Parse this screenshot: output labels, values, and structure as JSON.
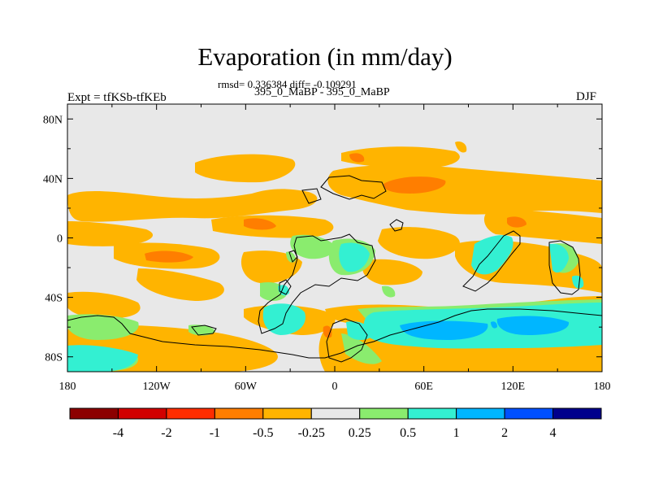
{
  "header": {
    "title": "Evaporation (in mm/day)",
    "stats": "rmsd= 0.336384 diff= -0.109291",
    "subtitle": "395_0_MaBP - 395_0_MaBP",
    "left_label": "Expt = tfKSb-tfKEb",
    "right_label": "DJF"
  },
  "map": {
    "x_ticks": [
      {
        "value": -180,
        "label": "180"
      },
      {
        "value": -120,
        "label": "120W"
      },
      {
        "value": -60,
        "label": "60W"
      },
      {
        "value": 0,
        "label": "0"
      },
      {
        "value": 60,
        "label": "60E"
      },
      {
        "value": 120,
        "label": "120E"
      },
      {
        "value": 180,
        "label": "180"
      }
    ],
    "y_ticks": [
      {
        "value": 80,
        "label": "80N"
      },
      {
        "value": 40,
        "label": "40N"
      },
      {
        "value": 0,
        "label": "0"
      },
      {
        "value": -40,
        "label": "40S"
      },
      {
        "value": -80,
        "label": "80S"
      }
    ]
  },
  "colorbar": {
    "colors": [
      "#8c0000",
      "#d10000",
      "#ff2d00",
      "#ff7e00",
      "#ffb400",
      "#e8e8e8",
      "#8aec6e",
      "#33f0d2",
      "#00b6ff",
      "#0050ff",
      "#00008c"
    ],
    "labels": [
      "-4",
      "-2",
      "-1",
      "-0.5",
      "-0.25",
      "0.25",
      "0.5",
      "1",
      "2",
      "4"
    ]
  }
}
